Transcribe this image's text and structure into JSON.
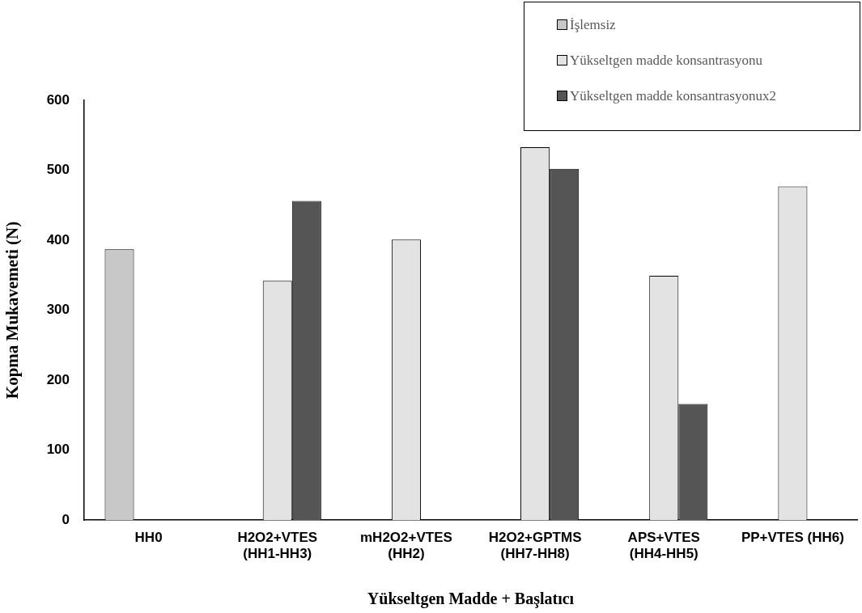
{
  "chart_data": {
    "type": "bar",
    "xlabel": "Yükseltgen Madde + Başlatıcı",
    "ylabel": "Kopma Mukavemeti (N)",
    "categories": [
      "HH0",
      "H2O2+VTES\n(HH1-HH3)",
      "mH2O2+VTES\n(HH2)",
      "H2O2+GPTMS\n(HH7-HH8)",
      "APS+VTES\n(HH4-HH5)",
      "PP+VTES (HH6)"
    ],
    "series": [
      {
        "name": "İşlemsiz",
        "color": "#c8c8c8",
        "values": [
          387,
          null,
          null,
          null,
          null,
          null
        ]
      },
      {
        "name": "Yükseltgen madde konsantrasyonu",
        "color": "#e3e3e3",
        "values": [
          null,
          342,
          401,
          533,
          349,
          477
        ]
      },
      {
        "name": "Yükseltgen madde konsantrasyonux2",
        "color": "#555555",
        "values": [
          null,
          456,
          null,
          502,
          166,
          null
        ]
      }
    ],
    "ylim": [
      0,
      600
    ],
    "yticks": [
      0,
      100,
      200,
      300,
      400,
      500,
      600
    ],
    "grid": false,
    "legend": "top right"
  }
}
